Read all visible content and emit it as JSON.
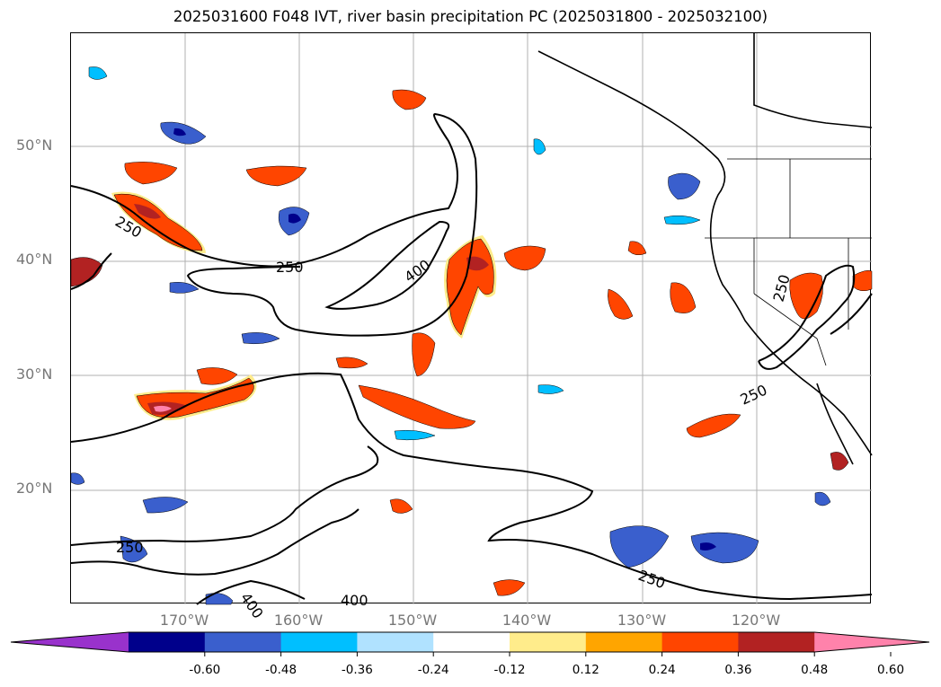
{
  "title": "2025031600 F048 IVT, river basin precipitation PC (2025031800 - 2025032100)",
  "lat_labels": [
    "50°N",
    "40°N",
    "30°N",
    "20°N"
  ],
  "lon_labels": [
    "170°W",
    "160°W",
    "150°W",
    "140°W",
    "130°W",
    "120°W"
  ],
  "contour_labels": [
    "250",
    "250",
    "400",
    "250",
    "250",
    "250",
    "400",
    "400"
  ],
  "colorbar": {
    "ticks": [
      "-0.60",
      "-0.48",
      "-0.36",
      "-0.24",
      "-0.12",
      "0.12",
      "0.24",
      "0.36",
      "0.48",
      "0.60"
    ],
    "colors": [
      "#9932cc",
      "#00008b",
      "#3a5fcd",
      "#00bfff",
      "#b0e2ff",
      "#ffffff",
      "#ffec8b",
      "#ffa500",
      "#ff4500",
      "#b22222",
      "#ff82ab"
    ]
  }
}
